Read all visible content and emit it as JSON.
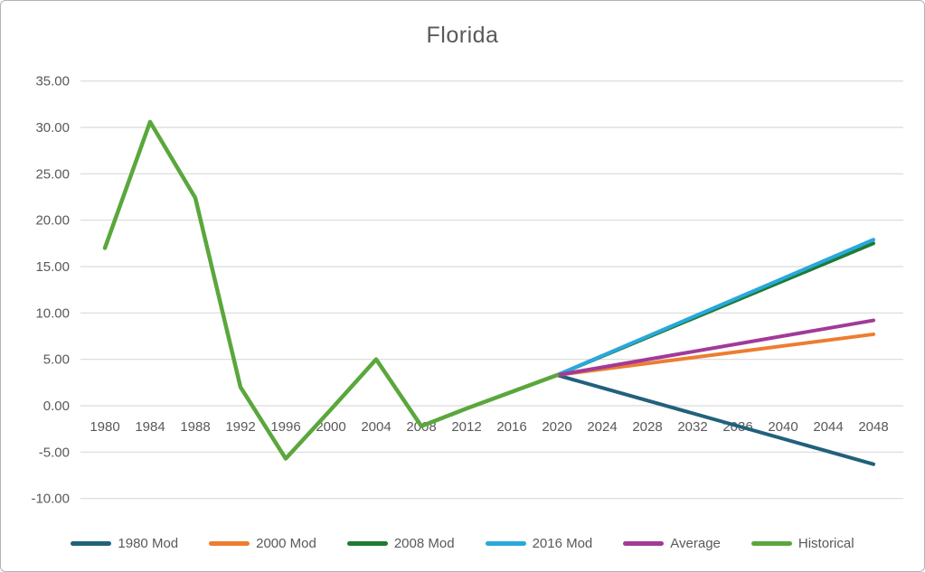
{
  "window": {
    "background_color": "#ffffff",
    "border_color": "#b3b3b3"
  },
  "chart": {
    "title_color": "#595959",
    "axis_label_color": "#595959",
    "grid_color": "#d9d9d9"
  },
  "chart_data": {
    "type": "line",
    "title": "Florida",
    "xlabel": "",
    "ylabel": "",
    "grid": true,
    "legend_position": "bottom",
    "x": [
      1980,
      1984,
      1988,
      1992,
      1996,
      2000,
      2004,
      2008,
      2012,
      2016,
      2020,
      2024,
      2028,
      2032,
      2036,
      2040,
      2044,
      2048
    ],
    "x_tick_labels": [
      "1980",
      "1984",
      "1988",
      "1992",
      "1996",
      "2000",
      "2004",
      "2008",
      "2012",
      "2016",
      "2020",
      "2024",
      "2028",
      "2032",
      "2036",
      "2040",
      "2044",
      "2048"
    ],
    "y_axis": {
      "min": -10,
      "max": 35,
      "step": 5,
      "tick_labels": [
        "35.00",
        "30.00",
        "25.00",
        "20.00",
        "15.00",
        "10.00",
        "5.00",
        "0.00",
        "-5.00",
        "-10.00"
      ]
    },
    "series": [
      {
        "name": "1980 Mod",
        "color": "#21617c",
        "width": 4,
        "points": [
          [
            2020,
            3.3
          ],
          [
            2048,
            -6.3
          ]
        ]
      },
      {
        "name": "2000 Mod",
        "color": "#ed7d31",
        "width": 4,
        "points": [
          [
            2020,
            3.3
          ],
          [
            2048,
            7.7
          ]
        ]
      },
      {
        "name": "2008 Mod",
        "color": "#1e7b34",
        "width": 4,
        "points": [
          [
            2020,
            3.3
          ],
          [
            2048,
            17.5
          ]
        ]
      },
      {
        "name": "2016 Mod",
        "color": "#29a8dc",
        "width": 4,
        "points": [
          [
            2020,
            3.3
          ],
          [
            2048,
            17.9
          ]
        ]
      },
      {
        "name": "Average",
        "color": "#a23a97",
        "width": 4,
        "points": [
          [
            2020,
            3.3
          ],
          [
            2048,
            9.2
          ]
        ]
      },
      {
        "name": "Historical",
        "color": "#5aa73c",
        "width": 4.5,
        "points": [
          [
            1980,
            17.0
          ],
          [
            1984,
            30.6
          ],
          [
            1988,
            22.4
          ],
          [
            1992,
            2.0
          ],
          [
            1996,
            -5.7
          ],
          [
            2000,
            -0.4
          ],
          [
            2004,
            5.0
          ],
          [
            2008,
            -2.2
          ],
          [
            2012,
            -0.3
          ],
          [
            2016,
            1.5
          ],
          [
            2020,
            3.3
          ]
        ]
      }
    ]
  }
}
